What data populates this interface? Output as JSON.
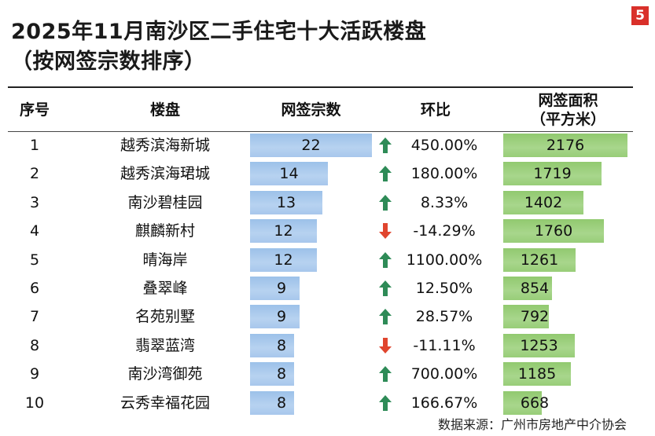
{
  "page_number": "5",
  "title_line1": "2025年11月南沙区二手住宅十大活跃楼盘",
  "title_line2": "（按网签宗数排序）",
  "headers": {
    "rank": "序号",
    "estate": "楼盘",
    "count": "网签宗数",
    "mom": "环比",
    "area_line1": "网签面积",
    "area_line2": "（平方米）"
  },
  "source": "数据来源：广州市房地产中介协会",
  "colors": {
    "count_bar": "#b0cdee",
    "area_bar": "#a3d484",
    "up_arrow": "#2e8b57",
    "down_arrow": "#e0452e"
  },
  "chart_data": {
    "type": "table",
    "columns": [
      "序号",
      "楼盘",
      "网签宗数",
      "环比",
      "网签面积（平方米）"
    ],
    "rows": [
      {
        "rank": "1",
        "estate": "越秀滨海新城",
        "count": 22,
        "mom": "450.00%",
        "dir": "up",
        "area": 2176
      },
      {
        "rank": "2",
        "estate": "越秀滨海珺城",
        "count": 14,
        "mom": "180.00%",
        "dir": "up",
        "area": 1719
      },
      {
        "rank": "3",
        "estate": "南沙碧桂园",
        "count": 13,
        "mom": "8.33%",
        "dir": "up",
        "area": 1402
      },
      {
        "rank": "4",
        "estate": "麒麟新村",
        "count": 12,
        "mom": "-14.29%",
        "dir": "down",
        "area": 1760
      },
      {
        "rank": "5",
        "estate": "晴海岸",
        "count": 12,
        "mom": "1100.00%",
        "dir": "up",
        "area": 1261
      },
      {
        "rank": "6",
        "estate": "叠翠峰",
        "count": 9,
        "mom": "12.50%",
        "dir": "up",
        "area": 854
      },
      {
        "rank": "7",
        "estate": "名苑别墅",
        "count": 9,
        "mom": "28.57%",
        "dir": "up",
        "area": 792
      },
      {
        "rank": "8",
        "estate": "翡翠蓝湾",
        "count": 8,
        "mom": "-11.11%",
        "dir": "down",
        "area": 1253
      },
      {
        "rank": "9",
        "estate": "南沙湾御苑",
        "count": 8,
        "mom": "700.00%",
        "dir": "up",
        "area": 1185
      },
      {
        "rank": "10",
        "estate": "云秀幸福花园",
        "count": 8,
        "mom": "166.67%",
        "dir": "up",
        "area": 668
      }
    ]
  }
}
